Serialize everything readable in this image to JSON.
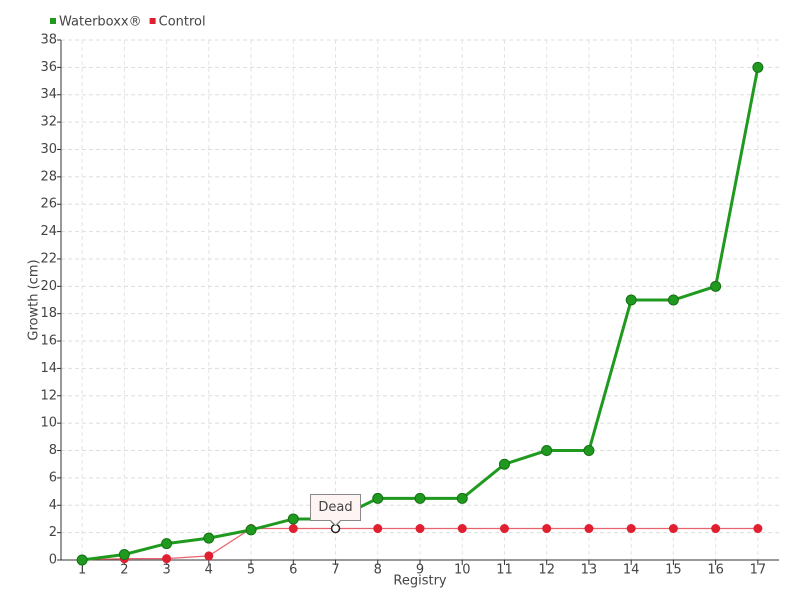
{
  "chart_data": {
    "type": "line",
    "categories": [
      "1",
      "2",
      "3",
      "4",
      "5",
      "6",
      "7",
      "8",
      "9",
      "10",
      "11",
      "12",
      "13",
      "14",
      "15",
      "16",
      "17"
    ],
    "series": [
      {
        "name": "Waterboxx®",
        "color": "#1f9a1f",
        "values": [
          0,
          0.4,
          1.2,
          1.6,
          2.2,
          3,
          3,
          4.5,
          4.5,
          4.5,
          7,
          8,
          8,
          19,
          19,
          20,
          36
        ]
      },
      {
        "name": "Control",
        "color": "#e02030",
        "values": [
          0,
          0.1,
          0.1,
          0.3,
          2.3,
          2.3,
          2.3,
          2.3,
          2.3,
          2.3,
          2.3,
          2.3,
          2.3,
          2.3,
          2.3,
          2.3,
          2.3
        ]
      }
    ],
    "xlabel": "Registry",
    "ylabel": "Growth (cm)",
    "ylim": [
      0,
      38
    ],
    "yticks": [
      0,
      2,
      4,
      6,
      8,
      10,
      12,
      14,
      16,
      18,
      20,
      22,
      24,
      26,
      28,
      30,
      32,
      34,
      36,
      38
    ],
    "grid": true,
    "legend": "top-left",
    "annotations": [
      {
        "text": "Dead",
        "x": "7"
      }
    ]
  }
}
